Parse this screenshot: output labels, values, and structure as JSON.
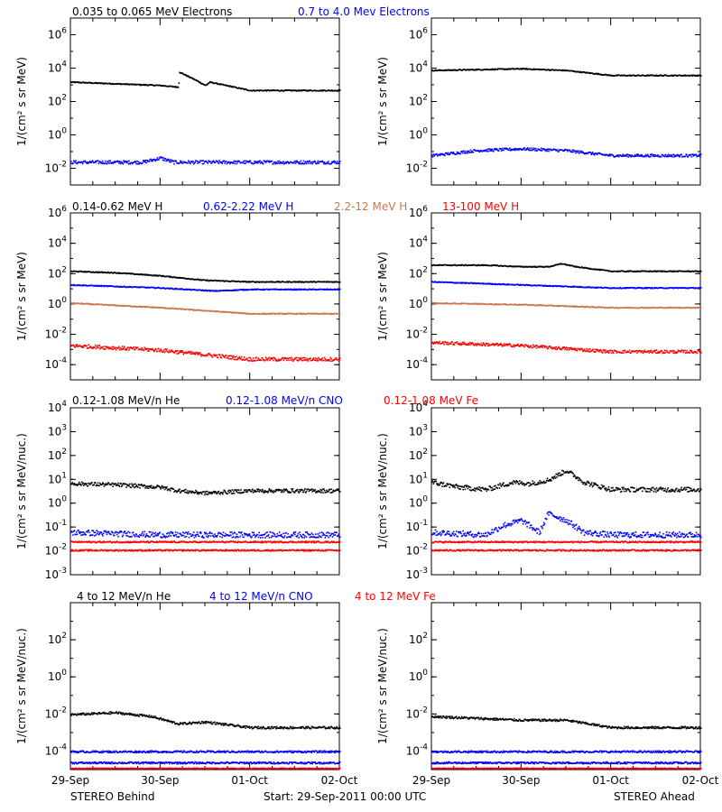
{
  "colors": {
    "black": "#000000",
    "blue": "#0000ff",
    "tan": "#c87850",
    "red": "#ff0000"
  },
  "rows": [
    {
      "labels": [
        {
          "text": "0.035 to 0.065 MeV Electrons",
          "color": "#000000"
        },
        {
          "text": "0.7 to 4.0 Mev Electrons",
          "color": "#0000ff"
        }
      ]
    },
    {
      "labels": [
        {
          "text": "0.14-0.62 MeV H",
          "color": "#000000"
        },
        {
          "text": "0.62-2.22 MeV H",
          "color": "#0000ff"
        },
        {
          "text": "2.2-12 MeV H",
          "color": "#c87850"
        },
        {
          "text": "13-100 MeV H",
          "color": "#ff0000"
        }
      ]
    },
    {
      "labels": [
        {
          "text": "0.12-1.08 MeV/n He",
          "color": "#000000"
        },
        {
          "text": "0.12-1.08 MeV/n CNO",
          "color": "#0000ff"
        },
        {
          "text": "0.12-1.08 MeV Fe",
          "color": "#ff0000"
        }
      ]
    },
    {
      "labels": [
        {
          "text": "4 to 12 MeV/n He",
          "color": "#000000"
        },
        {
          "text": "4 to 12 MeV/n CNO",
          "color": "#0000ff"
        },
        {
          "text": "4 to 12 MeV Fe",
          "color": "#ff0000"
        }
      ]
    }
  ],
  "footer": {
    "left": "STEREO Behind",
    "center": "Start: 29-Sep-2011 00:00 UTC",
    "right": "STEREO Ahead"
  },
  "chart_data": [
    {
      "type": "scatter",
      "ylog": true,
      "ylim_exp": [
        -3,
        7
      ],
      "ylabel": "1/(cm² s sr MeV)",
      "y_ticks": [
        {
          "exp": 6,
          "label": "10^6"
        },
        {
          "exp": 4,
          "label": "10^4"
        },
        {
          "exp": 2,
          "label": "10^2"
        },
        {
          "exp": 0,
          "label": "10^0"
        },
        {
          "exp": -2,
          "label": "10^-2"
        }
      ],
      "series": [
        {
          "color": "#000000",
          "points": [
            [
              0,
              3.2
            ],
            [
              0.5,
              3.1
            ],
            [
              1.0,
              3.0
            ],
            [
              1.2,
              2.9
            ],
            [
              1.21,
              3.8
            ],
            [
              1.4,
              3.3
            ],
            [
              1.5,
              3.0
            ],
            [
              1.55,
              3.2
            ],
            [
              2.0,
              2.7
            ]
          ]
        },
        {
          "color": "#0000ff",
          "scatter": 0.1,
          "points": [
            [
              0,
              -1.6
            ],
            [
              0.8,
              -1.6
            ],
            [
              1.0,
              -1.35
            ],
            [
              1.15,
              -1.6
            ],
            [
              1.6,
              -1.6
            ],
            [
              2.0,
              -1.6
            ]
          ]
        }
      ]
    },
    {
      "type": "scatter",
      "ylog": true,
      "ylim_exp": [
        -3,
        7
      ],
      "ylabel": "1/(cm² s sr MeV)",
      "y_ticks": [
        {
          "exp": 6,
          "label": "10^6"
        },
        {
          "exp": 4,
          "label": "10^4"
        },
        {
          "exp": 2,
          "label": "10^2"
        },
        {
          "exp": 0,
          "label": "10^0"
        },
        {
          "exp": -2,
          "label": "10^-2"
        }
      ],
      "series": [
        {
          "color": "#000000",
          "points": [
            [
              0,
              3.9
            ],
            [
              1.0,
              4.0
            ],
            [
              1.5,
              3.9
            ],
            [
              2.0,
              3.6
            ]
          ]
        },
        {
          "color": "#0000ff",
          "scatter": 0.08,
          "points": [
            [
              0,
              -1.2
            ],
            [
              0.5,
              -0.9
            ],
            [
              1.0,
              -0.8
            ],
            [
              1.5,
              -0.9
            ],
            [
              2.0,
              -1.2
            ]
          ]
        }
      ]
    },
    {
      "type": "scatter",
      "ylog": true,
      "ylim_exp": [
        -5,
        6
      ],
      "ylabel": "1/(cm² s sr MeV)",
      "y_ticks": [
        {
          "exp": 6,
          "label": "10^6"
        },
        {
          "exp": 4,
          "label": "10^4"
        },
        {
          "exp": 2,
          "label": "10^2"
        },
        {
          "exp": 0,
          "label": "10^0"
        },
        {
          "exp": -2,
          "label": "10^-2"
        },
        {
          "exp": -4,
          "label": "10^-4"
        }
      ],
      "series": [
        {
          "color": "#000000",
          "points": [
            [
              0,
              2.2
            ],
            [
              0.5,
              2.1
            ],
            [
              1.0,
              1.9
            ],
            [
              1.5,
              1.6
            ],
            [
              2.0,
              1.5
            ]
          ]
        },
        {
          "color": "#0000ff",
          "points": [
            [
              0,
              1.3
            ],
            [
              1.0,
              1.1
            ],
            [
              1.6,
              0.9
            ],
            [
              2.0,
              1.0
            ]
          ]
        },
        {
          "color": "#c87850",
          "points": [
            [
              0,
              0.1
            ],
            [
              1.0,
              -0.2
            ],
            [
              2.0,
              -0.6
            ]
          ]
        },
        {
          "color": "#ff0000",
          "scatter": 0.12,
          "points": [
            [
              0,
              -2.7
            ],
            [
              1.0,
              -3.0
            ],
            [
              2.0,
              -3.6
            ]
          ]
        }
      ]
    },
    {
      "type": "scatter",
      "ylog": true,
      "ylim_exp": [
        -5,
        6
      ],
      "ylabel": "1/(cm² s sr MeV)",
      "y_ticks": [
        {
          "exp": 6,
          "label": "10^6"
        },
        {
          "exp": 4,
          "label": "10^4"
        },
        {
          "exp": 2,
          "label": "10^2"
        },
        {
          "exp": 0,
          "label": "10^0"
        },
        {
          "exp": -2,
          "label": "10^-2"
        },
        {
          "exp": -4,
          "label": "10^-4"
        }
      ],
      "series": [
        {
          "color": "#000000",
          "points": [
            [
              0,
              2.6
            ],
            [
              0.6,
              2.6
            ],
            [
              1.0,
              2.5
            ],
            [
              1.3,
              2.5
            ],
            [
              1.45,
              2.7
            ],
            [
              1.6,
              2.5
            ],
            [
              2.0,
              2.2
            ]
          ]
        },
        {
          "color": "#0000ff",
          "points": [
            [
              0,
              1.5
            ],
            [
              1.0,
              1.3
            ],
            [
              2.0,
              1.1
            ]
          ]
        },
        {
          "color": "#c87850",
          "points": [
            [
              0,
              0.1
            ],
            [
              1.0,
              0.0
            ],
            [
              2.0,
              -0.2
            ]
          ]
        },
        {
          "color": "#ff0000",
          "scatter": 0.1,
          "points": [
            [
              0,
              -2.5
            ],
            [
              1.0,
              -2.7
            ],
            [
              2.0,
              -3.1
            ]
          ]
        }
      ]
    },
    {
      "type": "scatter",
      "ylog": true,
      "ylim_exp": [
        -3,
        4
      ],
      "ylabel": "1/(cm² s sr MeV/nuc.)",
      "y_ticks": [
        {
          "exp": 4,
          "label": "10^4"
        },
        {
          "exp": 3,
          "label": "10^3"
        },
        {
          "exp": 2,
          "label": "10^2"
        },
        {
          "exp": 1,
          "label": "10^1"
        },
        {
          "exp": 0,
          "label": "10^0"
        },
        {
          "exp": -1,
          "label": "10^-1"
        },
        {
          "exp": -2,
          "label": "10^-2"
        },
        {
          "exp": -3,
          "label": "10^-3"
        }
      ],
      "series": [
        {
          "color": "#000000",
          "scatter": 0.08,
          "points": [
            [
              0,
              0.85
            ],
            [
              0.5,
              0.8
            ],
            [
              0.75,
              0.75
            ],
            [
              1.0,
              0.7
            ],
            [
              1.2,
              0.55
            ],
            [
              1.5,
              0.45
            ],
            [
              2.0,
              0.55
            ]
          ]
        },
        {
          "color": "#0000ff",
          "scatter": 0.12,
          "points": [
            [
              0,
              -1.2
            ],
            [
              1.0,
              -1.3
            ],
            [
              2.0,
              -1.3
            ]
          ]
        },
        {
          "color": "#ff0000",
          "scatter": 0.03,
          "points": [
            [
              0,
              -1.6
            ],
            [
              2.0,
              -1.6
            ]
          ]
        },
        {
          "color": "#ff0000",
          "scatter": 0.03,
          "points": [
            [
              0,
              -1.95
            ],
            [
              2.0,
              -1.95
            ]
          ]
        }
      ]
    },
    {
      "type": "scatter",
      "ylog": true,
      "ylim_exp": [
        -3,
        4
      ],
      "ylabel": "1/(cm² s sr MeV/nuc.)",
      "y_ticks": [
        {
          "exp": 4,
          "label": "10^4"
        },
        {
          "exp": 3,
          "label": "10^3"
        },
        {
          "exp": 2,
          "label": "10^2"
        },
        {
          "exp": 1,
          "label": "10^1"
        },
        {
          "exp": 0,
          "label": "10^0"
        },
        {
          "exp": -1,
          "label": "10^-1"
        },
        {
          "exp": -2,
          "label": "10^-2"
        },
        {
          "exp": -3,
          "label": "10^-3"
        }
      ],
      "series": [
        {
          "color": "#000000",
          "scatter": 0.1,
          "points": [
            [
              0,
              0.9
            ],
            [
              0.3,
              0.7
            ],
            [
              0.6,
              0.6
            ],
            [
              0.9,
              0.9
            ],
            [
              1.1,
              0.85
            ],
            [
              1.3,
              1.0
            ],
            [
              1.5,
              1.4
            ],
            [
              1.7,
              0.9
            ],
            [
              2.0,
              0.6
            ]
          ]
        },
        {
          "color": "#0000ff",
          "scatter": 0.12,
          "points": [
            [
              0,
              -1.2
            ],
            [
              0.6,
              -1.3
            ],
            [
              0.8,
              -0.9
            ],
            [
              1.0,
              -0.7
            ],
            [
              1.2,
              -1.2
            ],
            [
              1.3,
              -0.4
            ],
            [
              1.5,
              -0.7
            ],
            [
              1.7,
              -1.2
            ],
            [
              2.0,
              -1.3
            ]
          ]
        },
        {
          "color": "#ff0000",
          "scatter": 0.03,
          "points": [
            [
              0,
              -1.6
            ],
            [
              2.0,
              -1.6
            ]
          ]
        },
        {
          "color": "#ff0000",
          "scatter": 0.03,
          "points": [
            [
              0,
              -1.95
            ],
            [
              2.0,
              -1.95
            ]
          ]
        }
      ]
    },
    {
      "type": "scatter",
      "ylog": true,
      "ylim_exp": [
        -5,
        4
      ],
      "ylabel": "1/(cm² s sr MeV/nuc.)",
      "y_ticks": [
        {
          "exp": 2,
          "label": "10^2"
        },
        {
          "exp": 0,
          "label": "10^0"
        },
        {
          "exp": -2,
          "label": "10^-2"
        },
        {
          "exp": -4,
          "label": "10^-4"
        }
      ],
      "series": [
        {
          "color": "#000000",
          "scatter": 0.06,
          "points": [
            [
              0,
              -2.0
            ],
            [
              0.5,
              -1.9
            ],
            [
              0.9,
              -2.1
            ],
            [
              1.2,
              -2.5
            ],
            [
              1.5,
              -2.4
            ],
            [
              2.0,
              -2.7
            ]
          ]
        },
        {
          "color": "#0000ff",
          "scatter": 0.05,
          "points": [
            [
              0,
              -4.0
            ],
            [
              2.0,
              -4.0
            ]
          ]
        },
        {
          "color": "#0000ff",
          "scatter": 0.05,
          "points": [
            [
              0,
              -4.6
            ],
            [
              2.0,
              -4.6
            ]
          ]
        },
        {
          "color": "#ff0000",
          "scatter": 0.02,
          "points": [
            [
              0,
              -4.9
            ],
            [
              2.0,
              -4.9
            ]
          ]
        }
      ]
    },
    {
      "type": "scatter",
      "ylog": true,
      "ylim_exp": [
        -5,
        4
      ],
      "ylabel": "1/(cm² s sr MeV/nuc.)",
      "y_ticks": [
        {
          "exp": 2,
          "label": "10^2"
        },
        {
          "exp": 0,
          "label": "10^0"
        },
        {
          "exp": -2,
          "label": "10^-2"
        },
        {
          "exp": -4,
          "label": "10^-4"
        }
      ],
      "series": [
        {
          "color": "#000000",
          "scatter": 0.06,
          "points": [
            [
              0,
              -2.1
            ],
            [
              0.5,
              -2.2
            ],
            [
              1.0,
              -2.3
            ],
            [
              1.5,
              -2.3
            ],
            [
              2.0,
              -2.7
            ]
          ]
        },
        {
          "color": "#0000ff",
          "scatter": 0.05,
          "points": [
            [
              0,
              -4.0
            ],
            [
              2.0,
              -4.0
            ]
          ]
        },
        {
          "color": "#0000ff",
          "scatter": 0.05,
          "points": [
            [
              0,
              -4.6
            ],
            [
              2.0,
              -4.6
            ]
          ]
        },
        {
          "color": "#ff0000",
          "scatter": 0.02,
          "points": [
            [
              0,
              -4.9
            ],
            [
              2.0,
              -4.9
            ]
          ]
        }
      ]
    }
  ],
  "x_axis": {
    "range_days": [
      0,
      3
    ],
    "ticks": [
      {
        "day": 0,
        "label": "29-Sep"
      },
      {
        "day": 1,
        "label": "30-Sep"
      },
      {
        "day": 2,
        "label": "01-Oct"
      },
      {
        "day": 3,
        "label": "02-Oct"
      }
    ]
  }
}
